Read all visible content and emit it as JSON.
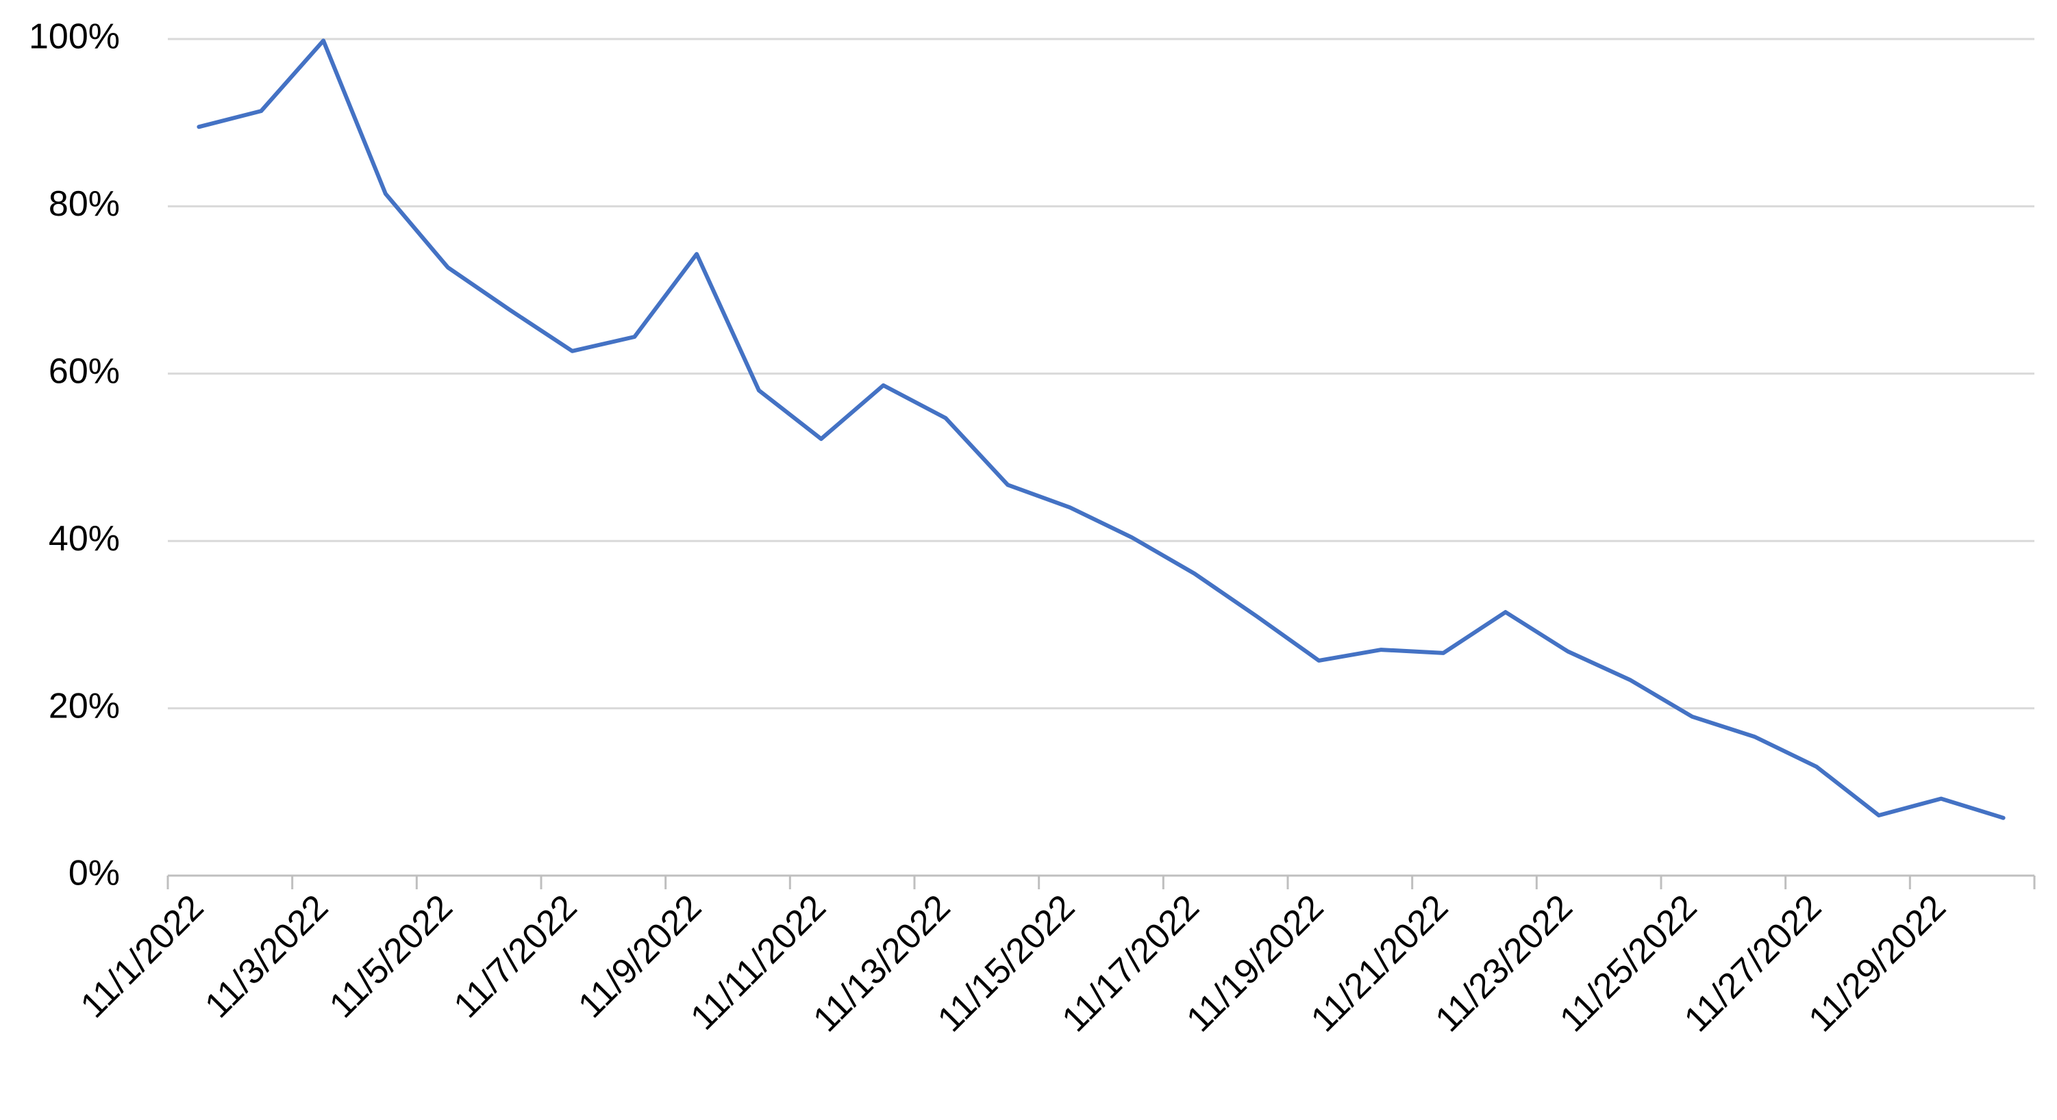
{
  "chart_data": {
    "type": "line",
    "categories": [
      "11/1/2022",
      null,
      "11/3/2022",
      null,
      "11/5/2022",
      null,
      "11/7/2022",
      null,
      "11/9/2022",
      null,
      "11/11/2022",
      null,
      "11/13/2022",
      null,
      "11/15/2022",
      null,
      "11/17/2022",
      null,
      "11/19/2022",
      null,
      "11/21/2022",
      null,
      "11/23/2022",
      null,
      "11/25/2022",
      null,
      "11/27/2022",
      null,
      "11/29/2022",
      null
    ],
    "values": [
      89.5,
      91.4,
      99.8,
      81.5,
      72.7,
      67.6,
      62.7,
      64.4,
      74.3,
      58.0,
      52.2,
      58.6,
      54.7,
      46.7,
      44.0,
      40.4,
      36.1,
      31.0,
      25.7,
      27.0,
      26.6,
      31.5,
      26.8,
      23.4,
      19.0,
      16.6,
      13.0,
      7.2,
      9.2,
      6.9
    ],
    "color": "#4472c4",
    "ylim": [
      0,
      100
    ],
    "yticks": [
      {
        "value": 0,
        "label": "0%"
      },
      {
        "value": 20,
        "label": "20%"
      },
      {
        "value": 40,
        "label": "40%"
      },
      {
        "value": 60,
        "label": "60%"
      },
      {
        "value": 80,
        "label": "80%"
      },
      {
        "value": 100,
        "label": "100%"
      }
    ],
    "grid": true
  }
}
